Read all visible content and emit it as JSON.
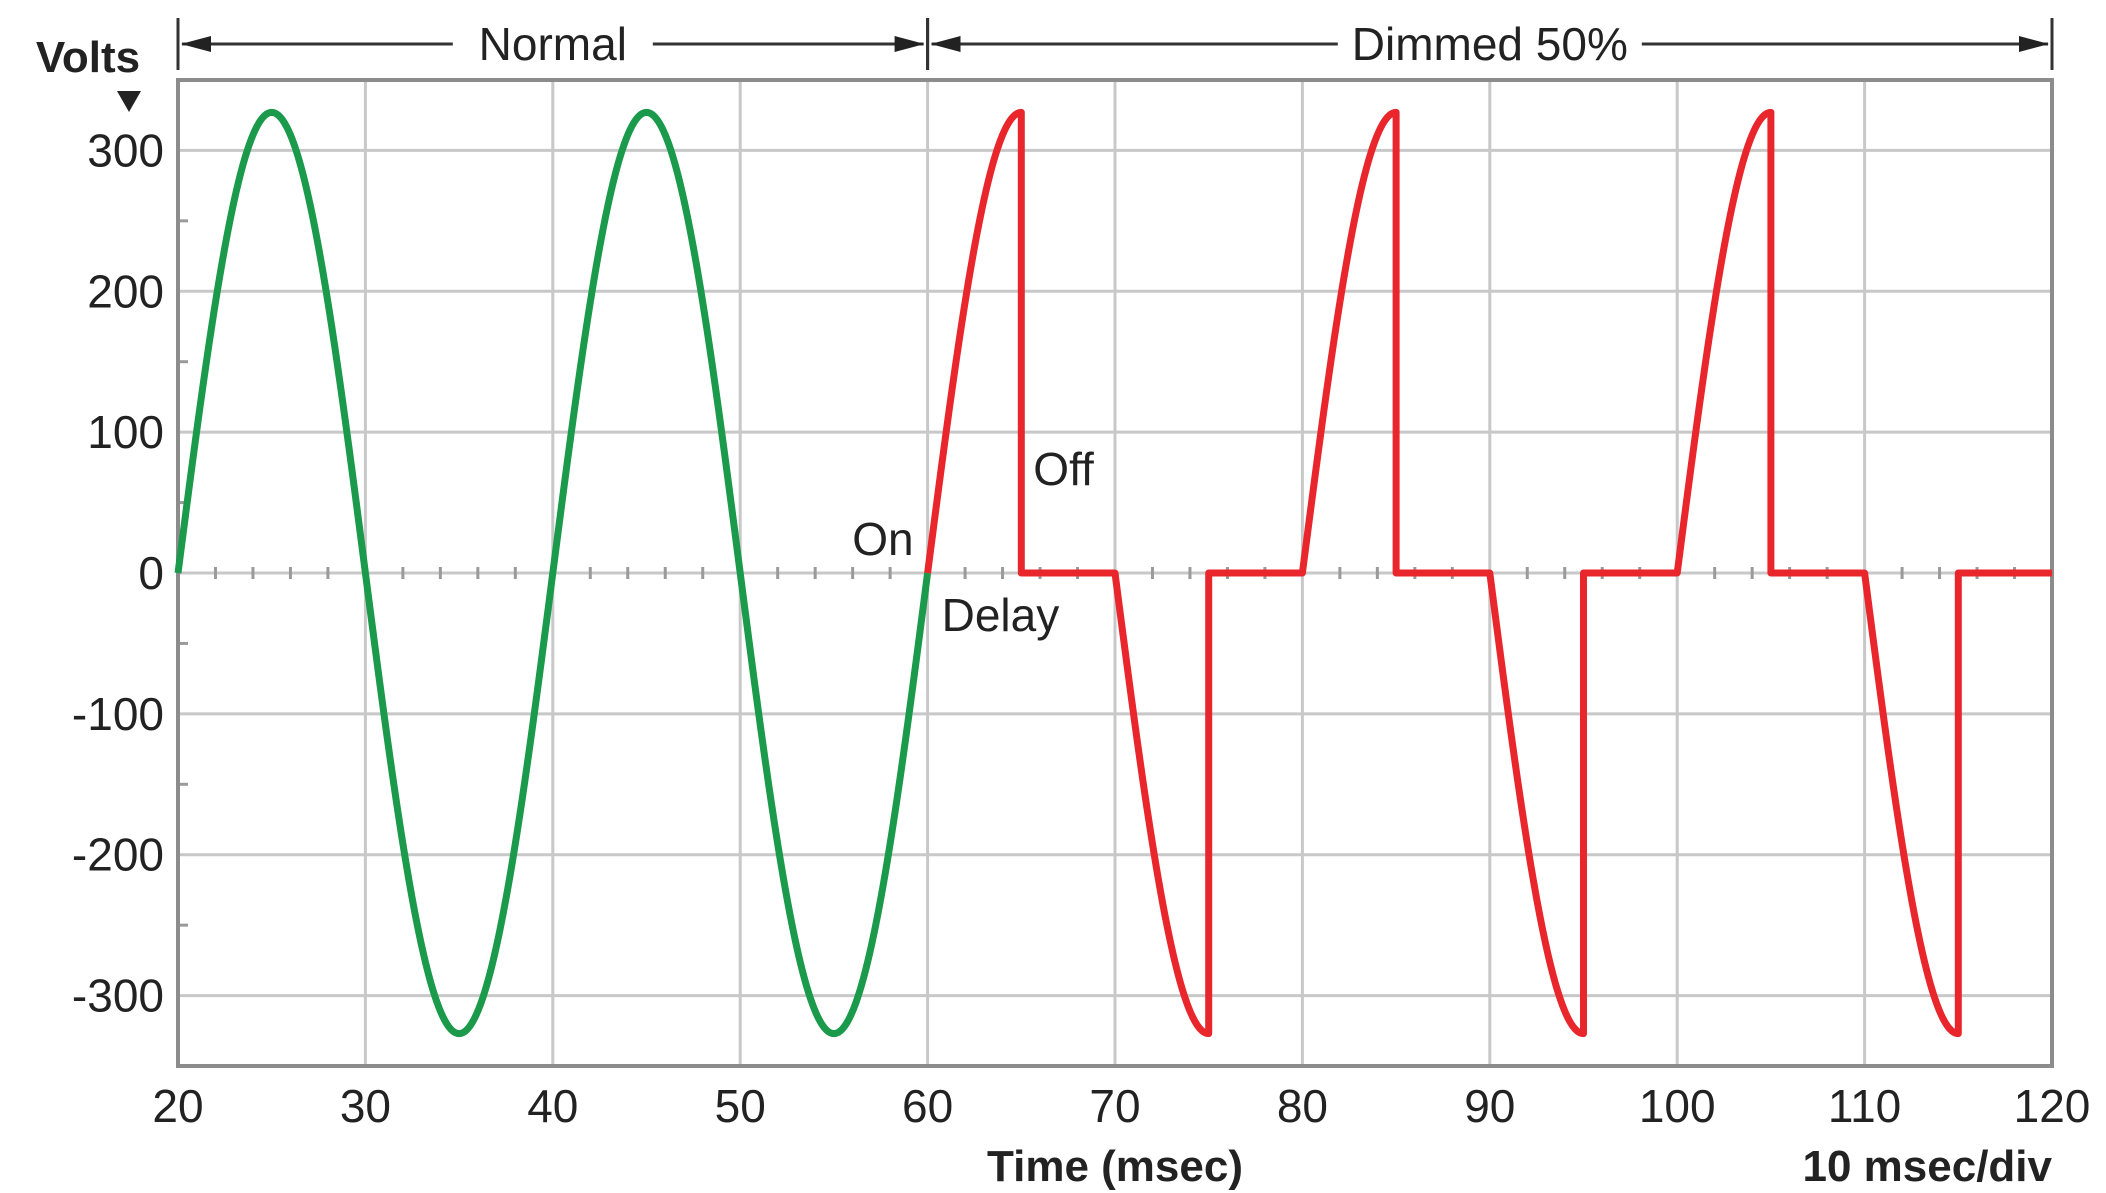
{
  "chart_data": {
    "type": "line",
    "title": "",
    "xlabel": "Time (msec)",
    "ylabel": "Volts",
    "xlim": [
      20,
      120
    ],
    "ylim": [
      -350,
      350
    ],
    "x_ticks": [
      20,
      30,
      40,
      50,
      60,
      70,
      80,
      90,
      100,
      110,
      120
    ],
    "y_ticks": [
      300,
      200,
      100,
      0,
      -100,
      -200,
      -300
    ],
    "grid": true,
    "scale_note": "10 msec/div",
    "spans": [
      {
        "label": "Normal",
        "x_start": 20,
        "x_end": 60
      },
      {
        "label": "Dimmed 50%",
        "x_start": 60,
        "x_end": 120
      }
    ],
    "annotations": [
      {
        "text": "On",
        "x": 60,
        "y": 0
      },
      {
        "text": "Off",
        "x": 65,
        "y": 0
      },
      {
        "text": "Delay",
        "x": 60,
        "y": 0
      }
    ],
    "series": [
      {
        "color": "#1a9a4a",
        "function": "sine",
        "amplitude": 327,
        "period_ms": 20,
        "x_start": 20,
        "x_end": 60
      },
      {
        "color": "#e8262b",
        "function": "phase-cut sine",
        "amplitude": 327,
        "period_ms": 20,
        "x_start": 60,
        "x_end": 120,
        "segments": [
          {
            "type": "sine",
            "from": 60,
            "to": 65
          },
          {
            "type": "zero",
            "from": 65,
            "to": 70
          },
          {
            "type": "sine",
            "from": 70,
            "to": 75
          },
          {
            "type": "zero",
            "from": 75,
            "to": 80
          },
          {
            "type": "sine",
            "from": 80,
            "to": 85
          },
          {
            "type": "zero",
            "from": 85,
            "to": 90
          },
          {
            "type": "sine",
            "from": 90,
            "to": 95
          },
          {
            "type": "zero",
            "from": 95,
            "to": 100
          },
          {
            "type": "sine",
            "from": 100,
            "to": 105
          },
          {
            "type": "zero",
            "from": 105,
            "to": 110
          },
          {
            "type": "sine",
            "from": 110,
            "to": 115
          },
          {
            "type": "zero",
            "from": 115,
            "to": 120
          }
        ]
      }
    ]
  }
}
